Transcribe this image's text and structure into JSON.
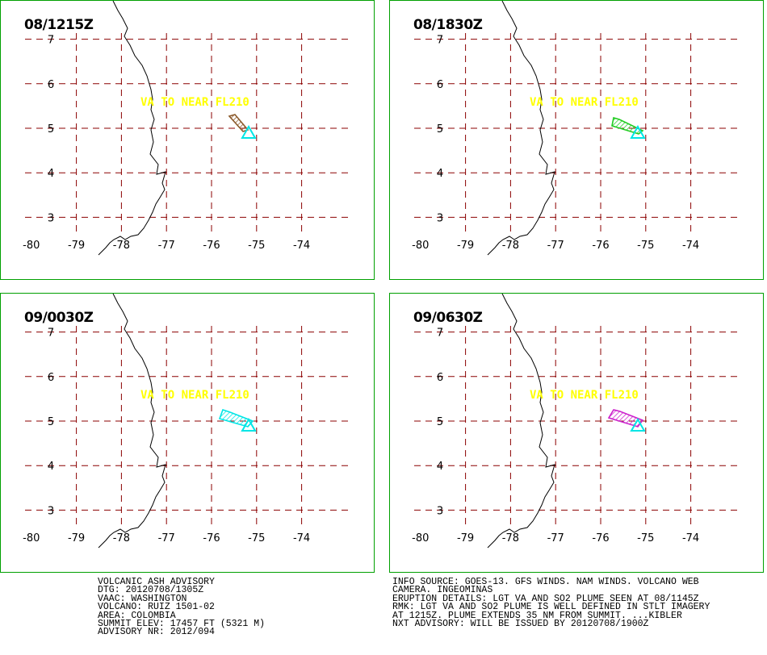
{
  "panels": [
    {
      "time": "08/1215Z",
      "plume_color": "#8b5a2b"
    },
    {
      "time": "08/1830Z",
      "plume_color": "#22cc22"
    },
    {
      "time": "09/0030Z",
      "plume_color": "#00e5e5"
    },
    {
      "time": "09/0630Z",
      "plume_color": "#cc22cc"
    }
  ],
  "plume_label": "VA TO NEAR FL210",
  "lat_labels": [
    "7",
    "6",
    "5",
    "4",
    "3"
  ],
  "lon_labels": [
    "-80",
    "-79",
    "-78",
    "-77",
    "-76",
    "-75",
    "-74"
  ],
  "colors": {
    "grid": "#8b0000",
    "frame": "#00a000",
    "volcano": "#00e5e5",
    "label": "#ffff00",
    "coast": "#000000"
  },
  "volcano_marker": "triangle-icon",
  "advisory_left": [
    "VOLCANIC ASH ADVISORY",
    "DTG: 20120708/1305Z",
    "VAAC: WASHINGTON",
    "VOLCANO: RUIZ 1501-02",
    "AREA: COLOMBIA",
    "SUMMIT ELEV: 17457 FT (5321 M)",
    "ADVISORY NR: 2012/094"
  ],
  "advisory_right": [
    "INFO SOURCE: GOES-13. GFS WINDS. NAM WINDS. VOLCANO WEB",
    "CAMERA. INGEOMINAS",
    "ERUPTION DETAILS: LGT VA AND SO2 PLUME SEEN AT 08/1145Z",
    "RMK: LGT VA AND SO2 PLUME IS WELL DEFINED IN STLT IMAGERY",
    "AT 1215Z. PLUME EXTENDS 35 NM FROM SUMMIT. ...KIBLER",
    "NXT ADVISORY: WILL BE ISSUED BY 20120708/1900Z"
  ]
}
